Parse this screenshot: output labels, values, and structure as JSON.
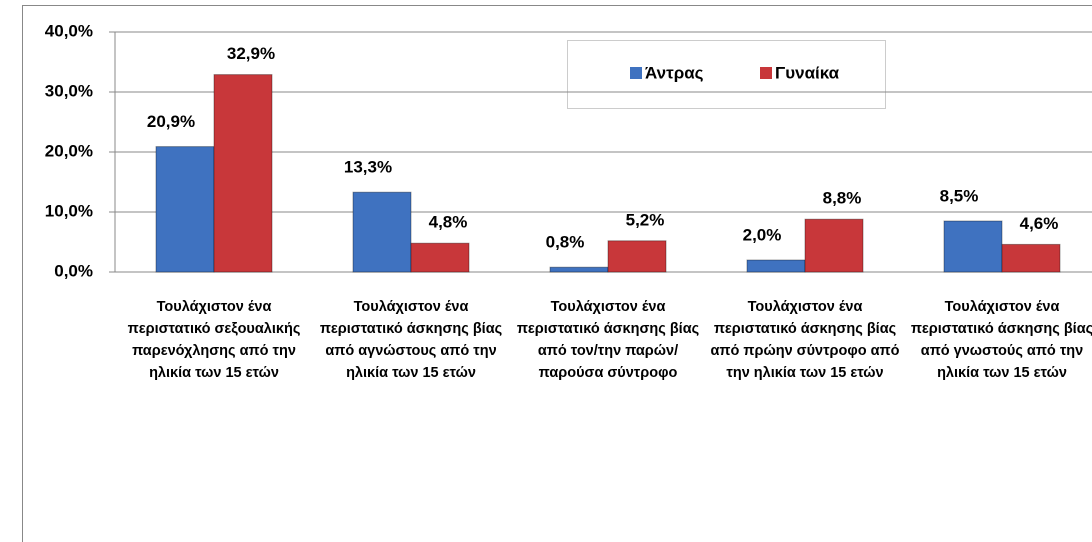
{
  "chart_data": {
    "type": "bar",
    "categories": [
      "Τουλάχιστον ένα περιστατικό σεξουαλικής παρενόχλησης από την ηλικία των 15 ετών",
      "Τουλάχιστον ένα περιστατικό άσκησης βίας από αγνώστους από την ηλικία των 15 ετών",
      "Τουλάχιστον ένα περιστατικό άσκησης βίας από τον/την παρών/ παρούσα σύντροφο",
      "Τουλάχιστον ένα περιστατικό άσκησης βίας από πρώην σύντροφο από την ηλικία των 15 ετών",
      "Τουλάχιστον ένα περιστατικό άσκησης βίας από γνωστούς από την ηλικία των 15 ετών"
    ],
    "series": [
      {
        "name": "Άντρας",
        "color": "#3f72c0",
        "values": [
          20.9,
          13.3,
          0.8,
          2.0,
          8.5
        ],
        "value_labels": [
          "20,9%",
          "13,3%",
          "0,8%",
          "2,0%",
          "8,5%"
        ]
      },
      {
        "name": "Γυναίκα",
        "color": "#c8373a",
        "values": [
          32.9,
          4.8,
          5.2,
          8.8,
          4.6
        ],
        "value_labels": [
          "32,9%",
          "4,8%",
          "5,2%",
          "8,8%",
          "4,6%"
        ]
      }
    ],
    "ylim": [
      0,
      40
    ],
    "yticks": [
      {
        "value": 0,
        "label": "0,0%"
      },
      {
        "value": 10,
        "label": "10,0%"
      },
      {
        "value": 20,
        "label": "20,0%"
      },
      {
        "value": 30,
        "label": "30,0%"
      },
      {
        "value": 40,
        "label": "40,0%"
      }
    ],
    "grid": true
  }
}
